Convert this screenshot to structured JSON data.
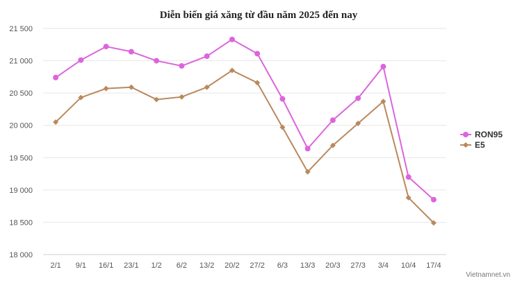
{
  "chart_data": {
    "type": "line",
    "title": "Diễn biến giá xăng từ đầu năm 2025 đến nay",
    "categories": [
      "2/1",
      "9/1",
      "16/1",
      "23/1",
      "1/2",
      "6/2",
      "13/2",
      "20/2",
      "27/2",
      "6/3",
      "13/3",
      "20/3",
      "27/3",
      "3/4",
      "10/4",
      "17/4"
    ],
    "y_ticks": [
      "18 000",
      "18 500",
      "19 000",
      "19 500",
      "20 000",
      "20 500",
      "21 000",
      "21 500"
    ],
    "ylim": [
      18000,
      21500
    ],
    "grid": true,
    "legend_position": "right",
    "series": [
      {
        "name": "RON95",
        "color": "#dc65dc",
        "marker": "circle",
        "values": [
          20740,
          21010,
          21220,
          21140,
          21000,
          20920,
          21070,
          21330,
          21110,
          20410,
          19640,
          20080,
          20420,
          20910,
          19200,
          18850
        ]
      },
      {
        "name": "E5",
        "color": "#b9895e",
        "marker": "diamond",
        "values": [
          20050,
          20430,
          20570,
          20590,
          20400,
          20440,
          20590,
          20850,
          20660,
          19970,
          19280,
          19690,
          20030,
          20370,
          18880,
          18490
        ]
      }
    ]
  },
  "credit": "Vietnamnet.vn"
}
